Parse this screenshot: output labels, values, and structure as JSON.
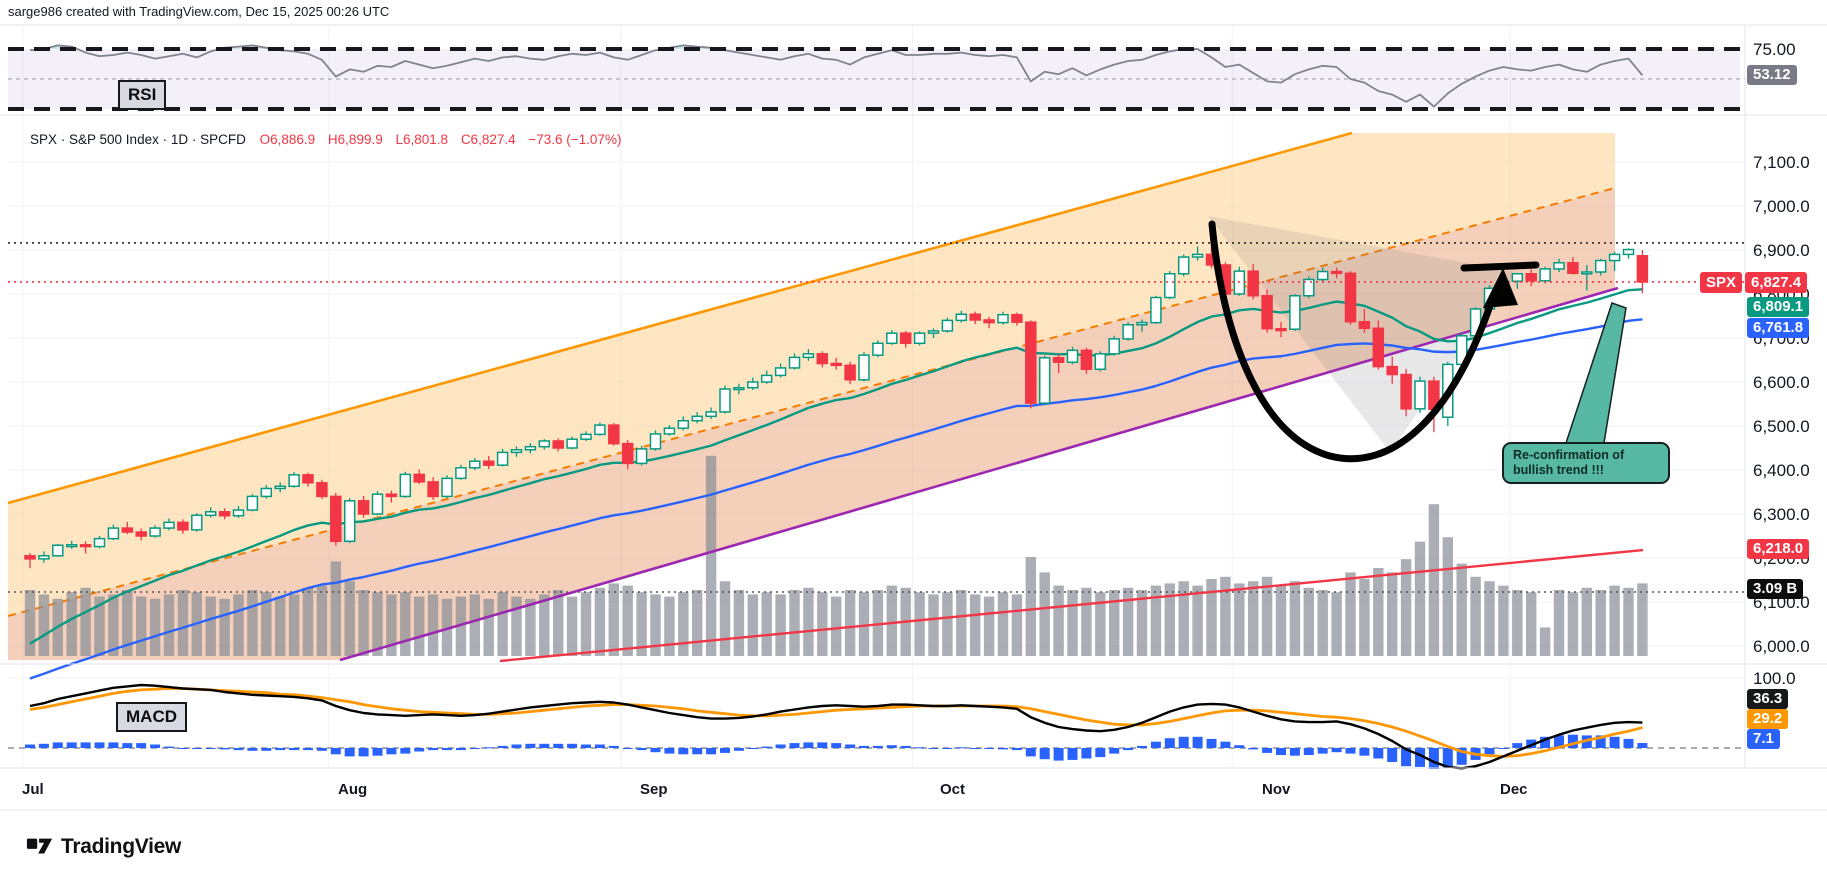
{
  "header": {
    "credit": "sarge986 created with TradingView.com, Dec 15, 2025 00:26 UTC"
  },
  "legend": {
    "title": "SPX · S&P 500 Index · 1D · SPCFD",
    "open": "O6,886.9",
    "high": "H6,899.9",
    "low": "L6,801.8",
    "close": "C6,827.4",
    "change": "−73.6 (−1.07%)"
  },
  "rsi_pane": {
    "label": "RSI",
    "upper_tick": "75.00",
    "value_badge": "53.12"
  },
  "macd_pane": {
    "label": "MACD",
    "top_tick": "100.0",
    "macd_badge": "36.3",
    "signal_badge": "29.2",
    "hist_badge": "7.1"
  },
  "price_scale": {
    "spx_tag": "SPX",
    "spx_value": "6,827.4",
    "ma_fast_badge": "6,809.1",
    "ma_slow_badge": "6,761.8",
    "trendline_badge": "6,218.0",
    "volume_badge": "3.09 B"
  },
  "annotation": {
    "line1": "Re-confirmation of",
    "line2": "bullish trend !!!"
  },
  "months": [
    "Jul",
    "Aug",
    "Sep",
    "Oct",
    "Nov",
    "Dec"
  ],
  "footer": {
    "brand": "TradingView"
  },
  "colors": {
    "up": "#089981",
    "down": "#f23645",
    "ma_fast": "#089981",
    "ma_slow": "#2962ff",
    "channel_upper": "#ff9800",
    "channel_mid": "#f57c00",
    "channel_lower": "#9c27b0",
    "macd_line": "#000000",
    "signal_line": "#ff9800",
    "hist": "#2962ff",
    "rsi_line": "#80838e",
    "volume": "#8b8f98",
    "callout": "#57b9a3",
    "trendline": "#f23645"
  },
  "chart_data": {
    "type": "candlestick",
    "title": "SPX S&P 500 Index 1D SPCFD",
    "x": {
      "months": [
        "Jul",
        "Aug",
        "Sep",
        "Oct",
        "Nov",
        "Dec"
      ],
      "month_start_index": [
        0,
        22,
        43,
        64,
        87,
        107
      ]
    },
    "y": {
      "min": 6000,
      "max": 7100,
      "tick_values": [
        7100,
        7000,
        6900,
        6800,
        6700,
        6600,
        6500,
        6400,
        6300,
        6200,
        6100,
        6000
      ],
      "tick_labels": [
        "7,100.0",
        "7,000.0",
        "6,900.0",
        "6,800.0",
        "6,700.0",
        "6,600.0",
        "6,500.0",
        "6,400.0",
        "6,300.0",
        "6,200.0",
        "6,100.0",
        "6,000.0"
      ]
    },
    "levels": {
      "ath_dotted": 6916,
      "last_price": 6827.4,
      "volume_ma_b": 3.09,
      "trendline_value": 6218.0
    },
    "ohlc_last": {
      "open": 6886.9,
      "high": 6899.9,
      "low": 6801.8,
      "close": 6827.4,
      "change": -73.6,
      "change_pct": -1.07
    },
    "candles": [
      [
        6205,
        6211,
        6177,
        6198,
        3.0
      ],
      [
        6198,
        6215,
        6189,
        6205,
        2.8
      ],
      [
        6205,
        6232,
        6203,
        6229,
        2.6
      ],
      [
        6229,
        6239,
        6221,
        6230,
        2.9
      ],
      [
        6230,
        6238,
        6210,
        6226,
        3.1
      ],
      [
        6226,
        6250,
        6222,
        6244,
        2.7
      ],
      [
        6244,
        6276,
        6241,
        6268,
        2.8
      ],
      [
        6268,
        6282,
        6254,
        6259,
        3.0
      ],
      [
        6259,
        6267,
        6240,
        6250,
        2.7
      ],
      [
        6250,
        6274,
        6246,
        6268,
        2.6
      ],
      [
        6268,
        6290,
        6263,
        6281,
        2.8
      ],
      [
        6281,
        6288,
        6255,
        6264,
        3.0
      ],
      [
        6264,
        6302,
        6260,
        6297,
        2.9
      ],
      [
        6297,
        6315,
        6292,
        6305,
        2.7
      ],
      [
        6305,
        6313,
        6288,
        6296,
        2.6
      ],
      [
        6296,
        6318,
        6291,
        6309,
        2.8
      ],
      [
        6309,
        6345,
        6306,
        6340,
        3.0
      ],
      [
        6340,
        6366,
        6335,
        6358,
        2.9
      ],
      [
        6358,
        6372,
        6349,
        6363,
        2.7
      ],
      [
        6363,
        6395,
        6360,
        6389,
        2.8
      ],
      [
        6389,
        6394,
        6362,
        6371,
        3.1
      ],
      [
        6371,
        6378,
        6334,
        6340,
        3.2
      ],
      [
        6340,
        6348,
        6228,
        6238,
        4.3
      ],
      [
        6238,
        6336,
        6234,
        6330,
        3.4
      ],
      [
        6330,
        6341,
        6292,
        6300,
        3.0
      ],
      [
        6300,
        6352,
        6297,
        6345,
        2.9
      ],
      [
        6345,
        6353,
        6326,
        6340,
        2.8
      ],
      [
        6340,
        6396,
        6337,
        6390,
        2.9
      ],
      [
        6390,
        6401,
        6368,
        6373,
        2.7
      ],
      [
        6373,
        6384,
        6332,
        6340,
        2.8
      ],
      [
        6340,
        6388,
        6336,
        6381,
        2.6
      ],
      [
        6381,
        6412,
        6378,
        6405,
        2.7
      ],
      [
        6405,
        6427,
        6400,
        6420,
        2.8
      ],
      [
        6420,
        6432,
        6402,
        6411,
        2.6
      ],
      [
        6411,
        6448,
        6408,
        6440,
        2.9
      ],
      [
        6440,
        6454,
        6430,
        6446,
        2.7
      ],
      [
        6446,
        6461,
        6438,
        6453,
        2.6
      ],
      [
        6453,
        6470,
        6446,
        6466,
        2.8
      ],
      [
        6466,
        6472,
        6442,
        6450,
        3.0
      ],
      [
        6450,
        6476,
        6447,
        6470,
        2.7
      ],
      [
        6470,
        6488,
        6466,
        6481,
        2.9
      ],
      [
        6481,
        6508,
        6478,
        6502,
        3.1
      ],
      [
        6502,
        6507,
        6455,
        6460,
        3.3
      ],
      [
        6460,
        6468,
        6402,
        6415,
        3.2
      ],
      [
        6415,
        6455,
        6410,
        6448,
        2.9
      ],
      [
        6448,
        6490,
        6444,
        6482,
        2.8
      ],
      [
        6482,
        6502,
        6478,
        6495,
        2.7
      ],
      [
        6495,
        6522,
        6490,
        6512,
        2.9
      ],
      [
        6512,
        6532,
        6506,
        6522,
        3.0
      ],
      [
        6522,
        6542,
        6516,
        6532,
        9.1
      ],
      [
        6532,
        6592,
        6528,
        6584,
        3.4
      ],
      [
        6584,
        6596,
        6572,
        6587,
        3.0
      ],
      [
        6587,
        6610,
        6582,
        6600,
        2.8
      ],
      [
        6600,
        6626,
        6596,
        6615,
        2.9
      ],
      [
        6615,
        6642,
        6610,
        6632,
        2.8
      ],
      [
        6632,
        6665,
        6628,
        6656,
        3.0
      ],
      [
        6656,
        6675,
        6648,
        6664,
        3.1
      ],
      [
        6664,
        6670,
        6633,
        6642,
        2.9
      ],
      [
        6642,
        6655,
        6628,
        6638,
        2.7
      ],
      [
        6638,
        6646,
        6595,
        6605,
        3.0
      ],
      [
        6605,
        6668,
        6601,
        6661,
        2.9
      ],
      [
        6661,
        6695,
        6656,
        6688,
        3.0
      ],
      [
        6688,
        6718,
        6684,
        6711,
        3.2
      ],
      [
        6711,
        6716,
        6678,
        6688,
        3.1
      ],
      [
        6688,
        6715,
        6683,
        6711,
        2.9
      ],
      [
        6711,
        6722,
        6700,
        6716,
        2.8
      ],
      [
        6716,
        6746,
        6712,
        6740,
        2.9
      ],
      [
        6740,
        6762,
        6735,
        6754,
        3.0
      ],
      [
        6754,
        6760,
        6732,
        6741,
        2.8
      ],
      [
        6741,
        6748,
        6722,
        6735,
        2.7
      ],
      [
        6735,
        6760,
        6730,
        6753,
        2.9
      ],
      [
        6753,
        6758,
        6728,
        6736,
        2.8
      ],
      [
        6736,
        6740,
        6540,
        6552,
        4.5
      ],
      [
        6552,
        6660,
        6548,
        6655,
        3.8
      ],
      [
        6655,
        6664,
        6620,
        6645,
        3.2
      ],
      [
        6645,
        6680,
        6640,
        6672,
        3.0
      ],
      [
        6672,
        6678,
        6618,
        6629,
        3.1
      ],
      [
        6629,
        6670,
        6624,
        6664,
        2.9
      ],
      [
        6664,
        6705,
        6660,
        6698,
        3.0
      ],
      [
        6698,
        6736,
        6694,
        6730,
        3.1
      ],
      [
        6730,
        6742,
        6714,
        6735,
        3.0
      ],
      [
        6735,
        6796,
        6732,
        6792,
        3.2
      ],
      [
        6792,
        6852,
        6788,
        6846,
        3.3
      ],
      [
        6846,
        6890,
        6840,
        6884,
        3.4
      ],
      [
        6884,
        6908,
        6876,
        6890,
        3.2
      ],
      [
        6890,
        6912,
        6858,
        6866,
        3.5
      ],
      [
        6866,
        6872,
        6790,
        6800,
        3.6
      ],
      [
        6800,
        6862,
        6796,
        6852,
        3.3
      ],
      [
        6852,
        6868,
        6788,
        6796,
        3.4
      ],
      [
        6796,
        6810,
        6712,
        6721,
        3.6
      ],
      [
        6721,
        6736,
        6702,
        6720,
        3.2
      ],
      [
        6720,
        6800,
        6716,
        6796,
        3.4
      ],
      [
        6796,
        6840,
        6790,
        6833,
        3.1
      ],
      [
        6833,
        6860,
        6826,
        6851,
        3.0
      ],
      [
        6851,
        6860,
        6836,
        6847,
        2.9
      ],
      [
        6847,
        6852,
        6730,
        6737,
        3.8
      ],
      [
        6737,
        6766,
        6712,
        6722,
        3.5
      ],
      [
        6722,
        6740,
        6628,
        6635,
        4.0
      ],
      [
        6635,
        6658,
        6596,
        6617,
        3.8
      ],
      [
        6617,
        6630,
        6522,
        6539,
        4.4
      ],
      [
        6539,
        6612,
        6530,
        6602,
        5.2
      ],
      [
        6602,
        6612,
        6486,
        6538,
        6.9
      ],
      [
        6520,
        6646,
        6500,
        6640,
        5.4
      ],
      [
        6640,
        6712,
        6635,
        6705,
        4.2
      ],
      [
        6705,
        6770,
        6700,
        6766,
        3.6
      ],
      [
        6766,
        6820,
        6760,
        6813,
        3.4
      ],
      [
        6813,
        6840,
        6800,
        6829,
        3.2
      ],
      [
        6829,
        6848,
        6812,
        6846,
        3.0
      ],
      [
        6846,
        6856,
        6818,
        6830,
        2.9
      ],
      [
        6830,
        6862,
        6824,
        6857,
        1.3
      ],
      [
        6857,
        6880,
        6850,
        6871,
        3.0
      ],
      [
        6871,
        6884,
        6844,
        6847,
        2.9
      ],
      [
        6847,
        6866,
        6808,
        6850,
        3.1
      ],
      [
        6850,
        6880,
        6842,
        6876,
        3.0
      ],
      [
        6876,
        6896,
        6852,
        6890,
        3.2
      ],
      [
        6890,
        6904,
        6880,
        6901,
        3.1
      ],
      [
        6886.9,
        6899.9,
        6801.8,
        6827.4,
        3.3
      ]
    ],
    "indicators": {
      "rsi": {
        "upper": 75,
        "mid": 50,
        "lower": 25,
        "last": 53.12,
        "values": [
          74,
          75,
          78,
          77,
          72,
          69,
          70,
          72,
          70,
          67,
          69,
          71,
          68,
          73,
          76,
          77,
          78,
          76,
          74,
          73,
          71,
          66,
          52,
          58,
          56,
          61,
          60,
          65,
          62,
          59,
          61,
          64,
          67,
          65,
          68,
          69,
          67,
          66,
          69,
          71,
          70,
          72,
          68,
          66,
          70,
          74,
          76,
          78,
          77,
          76,
          74,
          72,
          70,
          68,
          66,
          69,
          71,
          67,
          66,
          62,
          68,
          71,
          74,
          70,
          70,
          71,
          71,
          72,
          70,
          69,
          70,
          68,
          48,
          56,
          54,
          59,
          53,
          58,
          62,
          65,
          66,
          70,
          73,
          75,
          75,
          68,
          60,
          62,
          55,
          48,
          47,
          54,
          58,
          61,
          60,
          50,
          47,
          40,
          37,
          31,
          37,
          27,
          38,
          46,
          52,
          57,
          60,
          58,
          57,
          60,
          62,
          58,
          56,
          62,
          65,
          67,
          53.12
        ]
      },
      "macd": {
        "last_macd": 36.3,
        "last_signal": 29.2,
        "last_hist": 7.1,
        "macd": [
          60,
          64,
          70,
          74,
          78,
          82,
          86,
          88,
          90,
          89,
          87,
          85,
          84,
          83,
          80,
          78,
          76,
          75,
          74,
          73,
          71,
          68,
          60,
          54,
          50,
          48,
          47,
          46,
          47,
          48,
          47,
          46,
          47,
          49,
          52,
          55,
          58,
          60,
          62,
          64,
          65,
          66,
          65,
          62,
          58,
          54,
          50,
          47,
          44,
          42,
          42,
          43,
          45,
          48,
          52,
          55,
          58,
          60,
          61,
          60,
          59,
          60,
          62,
          62,
          61,
          60,
          60,
          61,
          60,
          59,
          58,
          56,
          44,
          36,
          30,
          27,
          25,
          24,
          26,
          30,
          36,
          44,
          52,
          58,
          62,
          63,
          62,
          58,
          52,
          46,
          41,
          38,
          37,
          37,
          38,
          34,
          28,
          20,
          10,
          -2,
          -10,
          -20,
          -27,
          -29,
          -26,
          -20,
          -12,
          -4,
          4,
          12,
          19,
          25,
          29,
          33,
          36,
          37,
          36.3
        ],
        "signal": [
          55,
          58,
          62,
          66,
          70,
          74,
          78,
          81,
          83,
          84,
          85,
          85,
          84,
          83,
          82,
          81,
          80,
          79,
          77,
          76,
          74,
          72,
          69,
          66,
          62,
          59,
          56,
          54,
          52,
          51,
          50,
          49,
          48,
          48,
          49,
          50,
          52,
          54,
          56,
          58,
          60,
          61,
          62,
          62,
          61,
          60,
          58,
          56,
          53,
          51,
          49,
          47,
          46,
          46,
          47,
          48,
          50,
          52,
          54,
          55,
          56,
          57,
          58,
          59,
          60,
          60,
          60,
          60,
          60,
          60,
          60,
          59,
          56,
          52,
          48,
          44,
          40,
          37,
          34,
          33,
          33,
          35,
          38,
          42,
          46,
          50,
          53,
          54,
          54,
          53,
          51,
          49,
          47,
          45,
          44,
          42,
          39,
          35,
          30,
          24,
          17,
          10,
          2,
          -5,
          -9,
          -11,
          -12,
          -11,
          -8,
          -4,
          1,
          6,
          11,
          15,
          20,
          24,
          29.2
        ]
      },
      "ma_fast_last": 6809.1,
      "ma_slow_last": 6761.8
    },
    "annotations": {
      "callout_text": "Re-confirmation of bullish trend !!!",
      "shapes": [
        "black-cup-with-up-arrow",
        "black-resistance-bar",
        "gray-correction-wedge",
        "teal-pointer"
      ]
    }
  }
}
